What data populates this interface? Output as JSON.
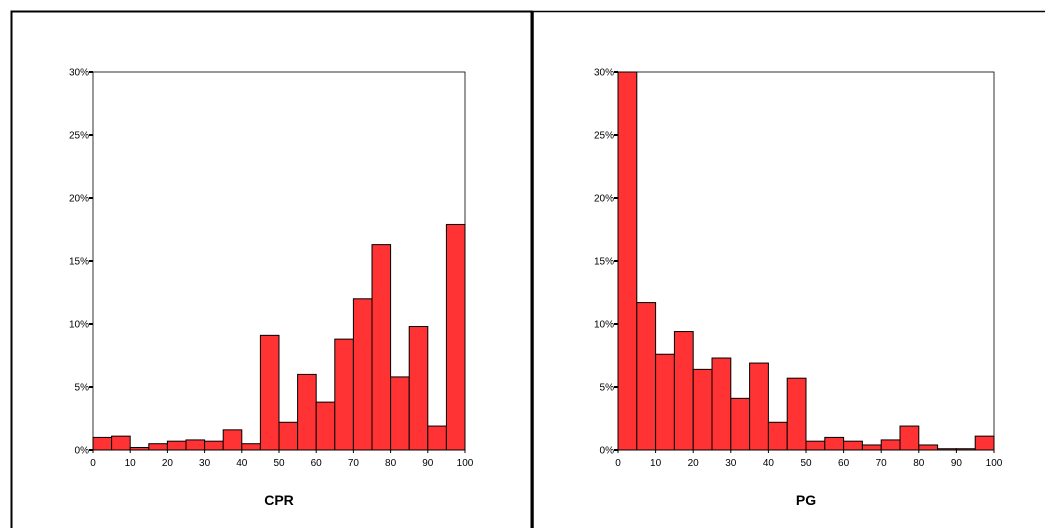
{
  "chart_data": [
    {
      "type": "bar",
      "xlabel": "CPR",
      "ylabel": "",
      "xlim": [
        0,
        100
      ],
      "ylim": [
        0,
        30
      ],
      "xticks": [
        "0",
        "10",
        "20",
        "30",
        "40",
        "50",
        "60",
        "70",
        "80",
        "90",
        "100"
      ],
      "yticks": [
        "0%",
        "5%",
        "10%",
        "15%",
        "20%",
        "25%",
        "30%"
      ],
      "bin_width": 5,
      "bin_starts": [
        0,
        5,
        10,
        15,
        20,
        25,
        30,
        35,
        40,
        45,
        50,
        55,
        60,
        65,
        70,
        75,
        80,
        85,
        90,
        95
      ],
      "values": [
        1.0,
        1.1,
        0.2,
        0.5,
        0.7,
        0.8,
        0.7,
        1.6,
        0.5,
        9.1,
        2.2,
        6.0,
        3.8,
        8.8,
        12.0,
        16.3,
        5.8,
        9.8,
        1.9,
        17.9
      ],
      "bar_color": "#ff3333",
      "grid": false
    },
    {
      "type": "bar",
      "xlabel": "PG",
      "ylabel": "",
      "xlim": [
        0,
        100
      ],
      "ylim": [
        0,
        30
      ],
      "xticks": [
        "0",
        "10",
        "20",
        "30",
        "40",
        "50",
        "60",
        "70",
        "80",
        "90",
        "100"
      ],
      "yticks": [
        "0%",
        "5%",
        "10%",
        "15%",
        "20%",
        "25%",
        "30%"
      ],
      "bin_width": 5,
      "bin_starts": [
        0,
        5,
        10,
        15,
        20,
        25,
        30,
        35,
        40,
        45,
        50,
        55,
        60,
        65,
        70,
        75,
        80,
        85,
        90,
        95
      ],
      "values": [
        30.0,
        11.7,
        7.6,
        9.4,
        6.4,
        7.3,
        4.1,
        6.9,
        2.2,
        5.7,
        0.7,
        1.0,
        0.7,
        0.4,
        0.8,
        1.9,
        0.4,
        0.1,
        0.1,
        1.1
      ],
      "bar_color": "#ff3333",
      "grid": false
    }
  ]
}
